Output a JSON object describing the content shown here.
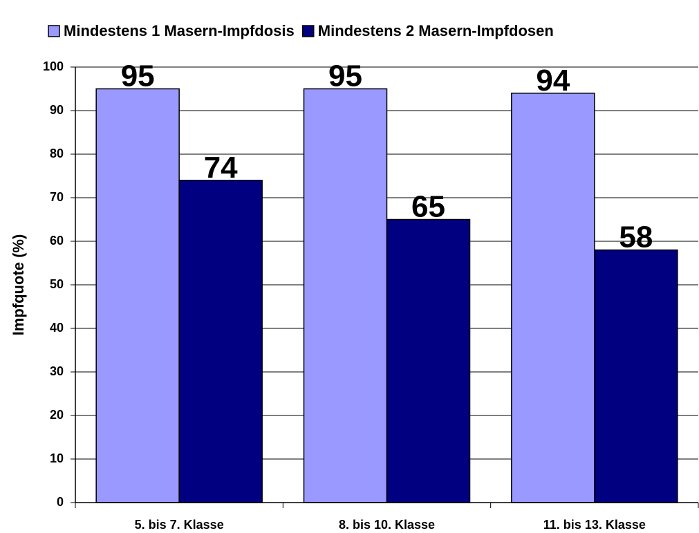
{
  "chart_data": {
    "type": "bar",
    "categories": [
      "5. bis 7. Klasse",
      "8. bis 10. Klasse",
      "11. bis 13. Klasse"
    ],
    "series": [
      {
        "name": "Mindestens 1 Masern-Impfdosis",
        "color": "#9999ff",
        "values": [
          95,
          95,
          94
        ]
      },
      {
        "name": "Mindestens 2 Masern-Impfdosen",
        "color": "#000080",
        "values": [
          74,
          65,
          58
        ]
      }
    ],
    "y_label": "Impfquote (%)",
    "ylim": [
      0,
      100
    ],
    "yticks": [
      0,
      10,
      20,
      30,
      40,
      50,
      60,
      70,
      80,
      90,
      100
    ],
    "grid": true,
    "legend": "top"
  }
}
